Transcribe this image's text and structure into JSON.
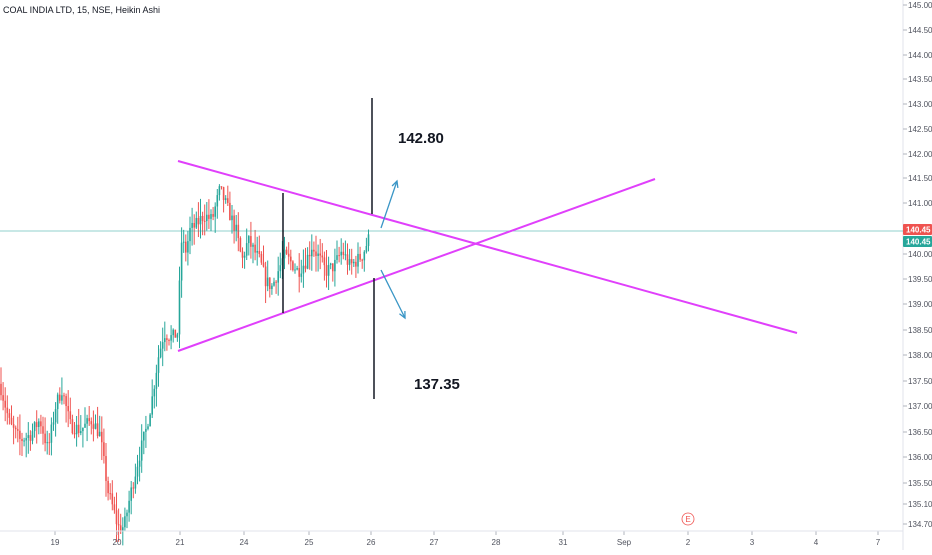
{
  "header": {
    "title": "COAL INDIA LTD, 15, NSE, Heikin Ashi"
  },
  "chart_data": {
    "type": "candlestick",
    "symbol": "COAL INDIA LTD",
    "interval": "15",
    "exchange": "NSE",
    "chart_style": "Heikin Ashi",
    "y_axis": {
      "ticks": [
        "145.00",
        "144.50",
        "144.00",
        "143.50",
        "143.00",
        "142.50",
        "142.00",
        "141.50",
        "141.00",
        "140.50",
        "140.00",
        "139.50",
        "139.00",
        "138.50",
        "138.00",
        "137.50",
        "137.00",
        "136.50",
        "136.00",
        "135.50",
        "135.10",
        "134.70"
      ]
    },
    "x_axis": {
      "ticks": [
        "19",
        "20",
        "21",
        "24",
        "25",
        "26",
        "27",
        "28",
        "31",
        "Sep",
        "2",
        "3",
        "4",
        "7"
      ]
    },
    "last_price": "140.45",
    "last_price_badges": [
      "140.45",
      "140.45"
    ],
    "colors": {
      "up": "#26a69a",
      "down": "#ef5350",
      "trendline": "#e040fb",
      "arrow": "#3a96c6",
      "price_line": "#26a69a",
      "badge_red": "#ef5350",
      "badge_green": "#26a69a"
    },
    "annotations": {
      "target_up": "142.80",
      "target_down": "137.35",
      "pattern": "symmetrical triangle"
    },
    "event_marker": "E"
  }
}
